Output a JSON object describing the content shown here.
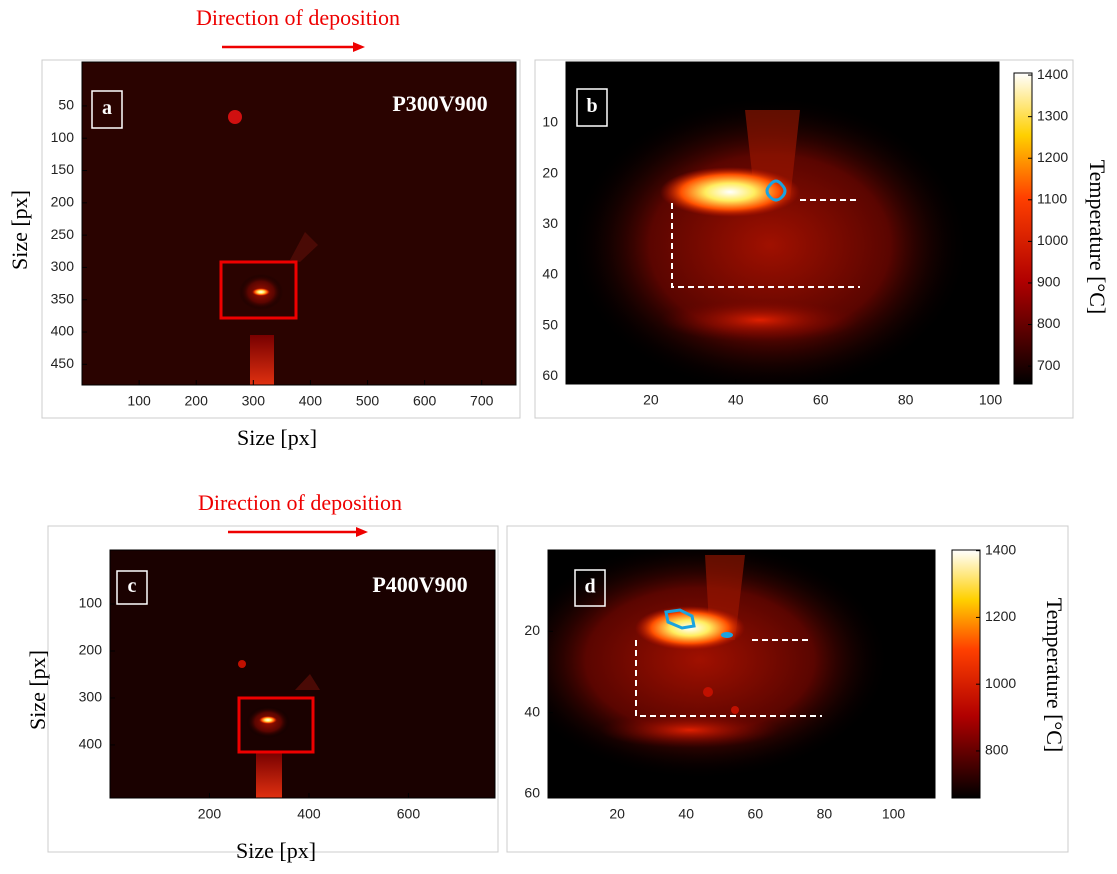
{
  "chart_data": [
    {
      "type": "image",
      "title": "Direction of deposition",
      "panel_label": "a",
      "annotation": "P300V900",
      "xlabel": "Size [px]",
      "ylabel": "Size [px]",
      "xlim": [
        0,
        760
      ],
      "ylim": [
        -18,
        482
      ],
      "xticks": [
        100,
        200,
        300,
        400,
        500,
        600,
        700
      ],
      "yticks": [
        50,
        100,
        150,
        200,
        250,
        300,
        350,
        400,
        450
      ],
      "y_inverted": true
    },
    {
      "type": "image",
      "panel_label": "b",
      "xlim": [
        0,
        102
      ],
      "ylim": [
        -2,
        61.5
      ],
      "xticks": [
        20,
        40,
        60,
        80,
        100
      ],
      "yticks": [
        10,
        20,
        30,
        40,
        50,
        60
      ],
      "y_inverted": true,
      "colorbar": {
        "label": "Temperature [°C]",
        "lim": [
          657,
          1405
        ],
        "ticks": [
          700,
          800,
          900,
          1000,
          1100,
          1200,
          1300,
          1400
        ]
      }
    },
    {
      "type": "image",
      "title": "Direction of deposition",
      "panel_label": "c",
      "annotation": "P400V900",
      "xlabel": "Size [px]",
      "ylabel": "Size [px]",
      "xlim": [
        0,
        774
      ],
      "ylim": [
        -15,
        513
      ],
      "xticks": [
        200,
        400,
        600
      ],
      "yticks": [
        100,
        200,
        300,
        400
      ],
      "y_inverted": true
    },
    {
      "type": "image",
      "panel_label": "d",
      "xlim": [
        0,
        112
      ],
      "ylim": [
        0,
        61
      ],
      "xticks": [
        20,
        40,
        60,
        80,
        100
      ],
      "yticks": [
        20,
        40,
        60
      ],
      "y_inverted": true,
      "colorbar": {
        "label": "Temperature [°C]",
        "lim": [
          659,
          1402
        ],
        "ticks": [
          800,
          1000,
          1200,
          1400
        ]
      }
    }
  ]
}
